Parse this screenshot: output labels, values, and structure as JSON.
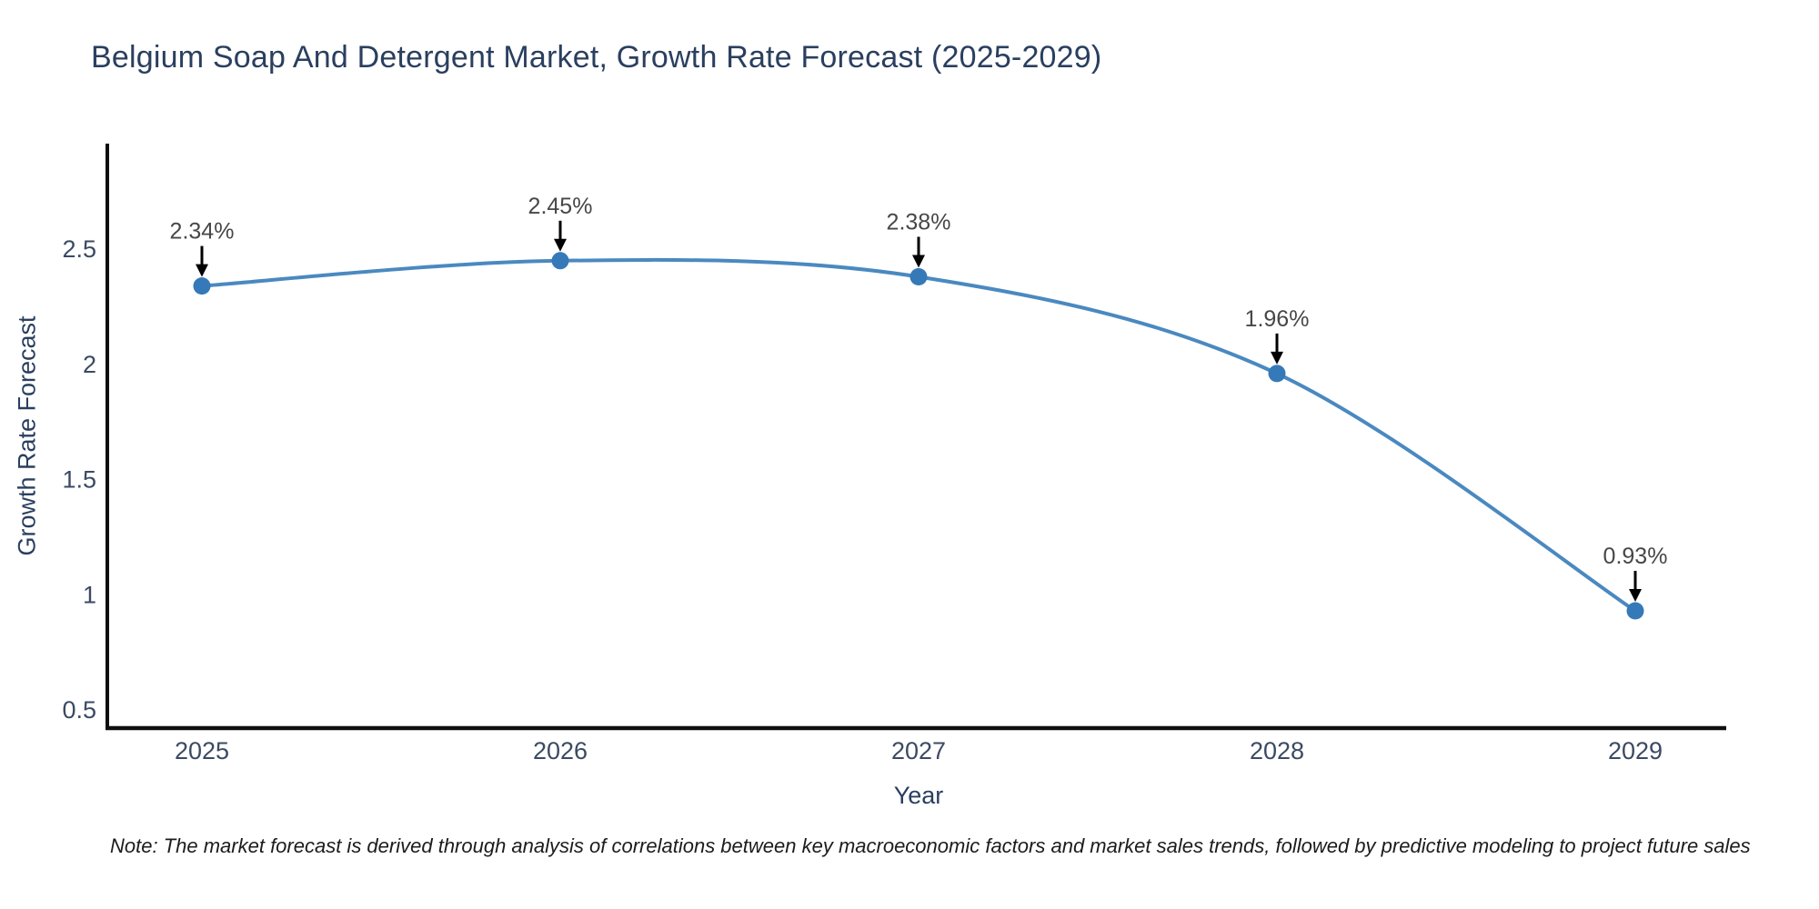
{
  "header": {
    "title": "Belgium Soap And Detergent Market, Growth Rate Forecast (2025-2029)"
  },
  "footnote": "Note: The market forecast is derived through analysis of correlations between key macroeconomic factors and market sales trends, followed by predictive modeling to project future sales",
  "chart_data": {
    "type": "line",
    "title": "Belgium Soap And Detergent Market, Growth Rate Forecast (2025-2029)",
    "x": [
      "2025",
      "2026",
      "2027",
      "2028",
      "2029"
    ],
    "series": [
      {
        "name": "Growth Rate Forecast",
        "values": [
          2.34,
          2.45,
          2.38,
          1.96,
          0.93
        ],
        "point_labels": [
          "2.34%",
          "2.45%",
          "2.38%",
          "1.96%",
          "0.93%"
        ]
      }
    ],
    "xlabel": "Year",
    "ylabel": "Growth Rate Forecast",
    "ylim": [
      0.421,
      2.958
    ],
    "yticks": [
      0.5,
      1,
      1.5,
      2,
      2.5
    ],
    "grid": false,
    "legend": false,
    "line_shape": "spline",
    "colors": {
      "line": "#4a89c0",
      "marker": "#3579b8",
      "arrow": "#000000",
      "axis": "#0f0f0f",
      "tick_text": "#3b4a63",
      "annotation_text": "#474747",
      "title_text": "#2a3f5f"
    }
  }
}
